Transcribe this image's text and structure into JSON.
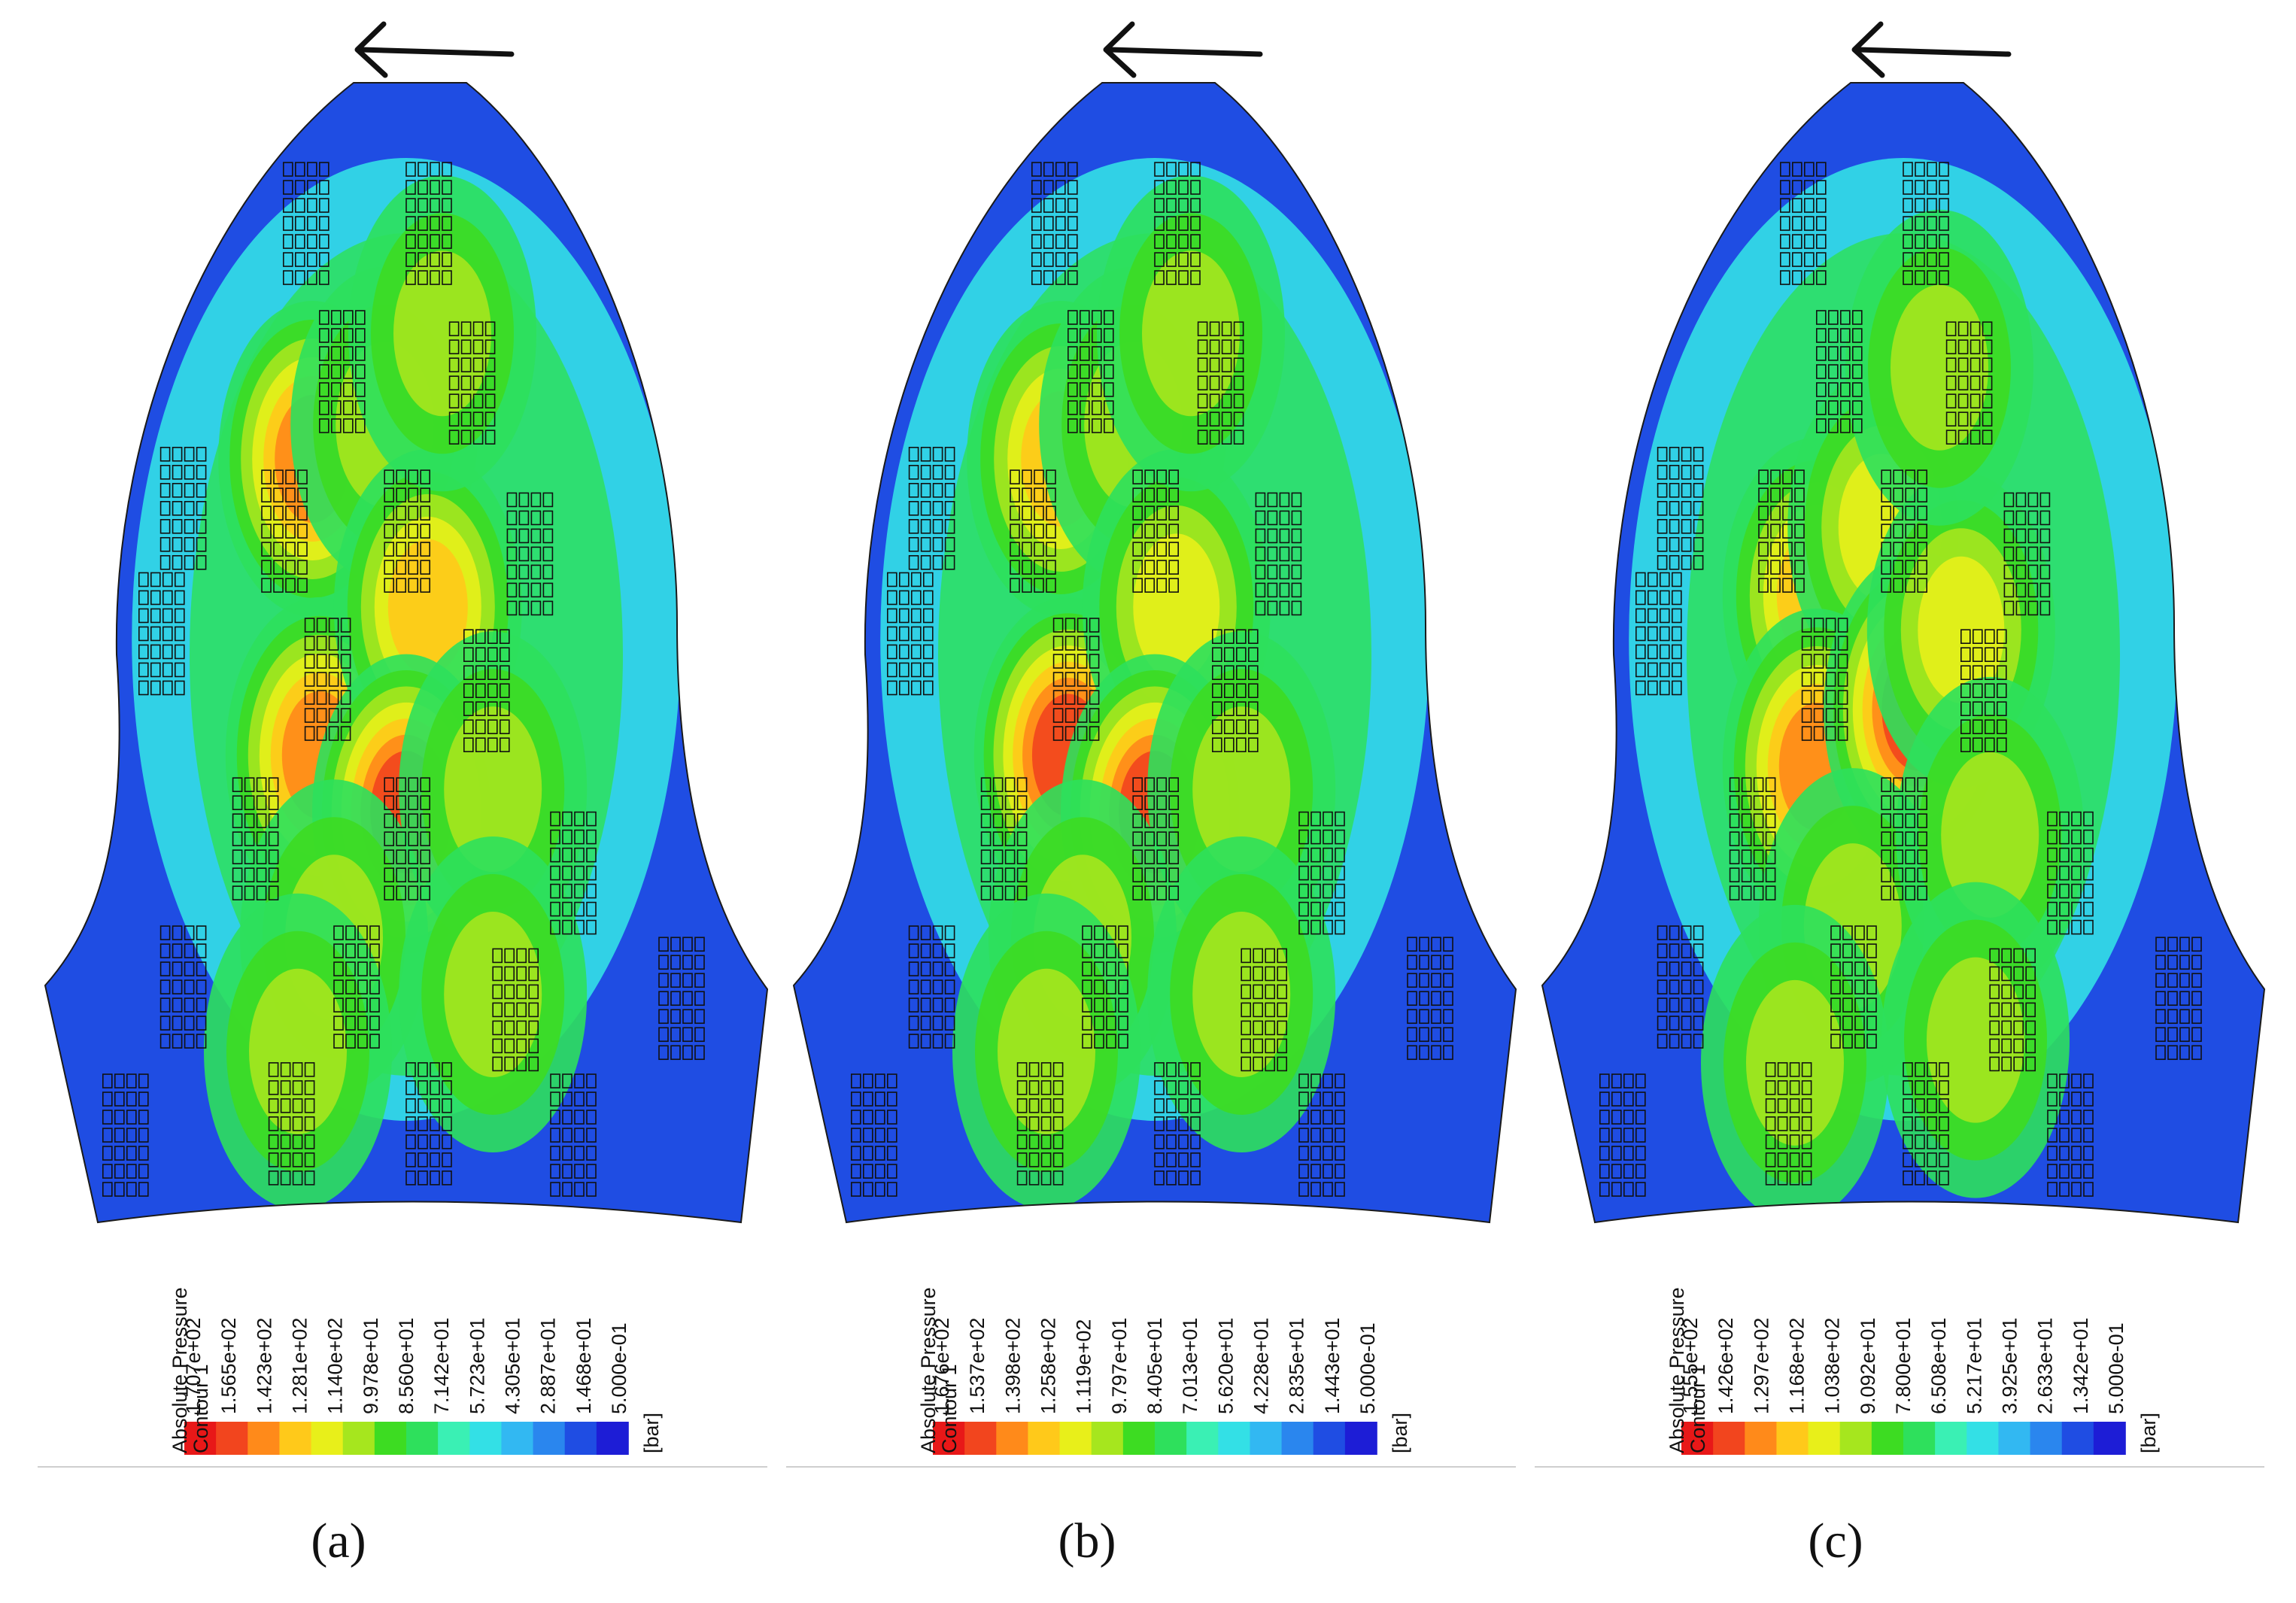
{
  "chart_data": [
    {
      "type": "heatmap",
      "caption": "(a)",
      "colorbar": {
        "title": "Absolute Pressure",
        "subtitle": "Contour 1",
        "unit": "[bar]",
        "tick_labels": [
          "1.707e+02",
          "1.565e+02",
          "1.423e+02",
          "1.281e+02",
          "1.140e+02",
          "9.978e+01",
          "8.560e+01",
          "7.142e+01",
          "5.723e+01",
          "4.305e+01",
          "2.887e+01",
          "1.468e+01",
          "5.000e-01"
        ],
        "max": 170.7,
        "min": 0.5
      },
      "rotation_arrow": "left",
      "hotspots": [
        {
          "x": 0.37,
          "y": 0.33,
          "v": 0.78
        },
        {
          "x": 0.47,
          "y": 0.3,
          "v": 0.55
        },
        {
          "x": 0.38,
          "y": 0.59,
          "v": 0.78
        },
        {
          "x": 0.53,
          "y": 0.46,
          "v": 0.72
        },
        {
          "x": 0.5,
          "y": 0.64,
          "v": 0.88
        },
        {
          "x": 0.4,
          "y": 0.75,
          "v": 0.55
        },
        {
          "x": 0.62,
          "y": 0.62,
          "v": 0.45
        },
        {
          "x": 0.35,
          "y": 0.85,
          "v": 0.4
        },
        {
          "x": 0.62,
          "y": 0.8,
          "v": 0.4
        },
        {
          "x": 0.55,
          "y": 0.22,
          "v": 0.35
        }
      ]
    },
    {
      "type": "heatmap",
      "caption": "(b)",
      "colorbar": {
        "title": "Absolute Pressure",
        "subtitle": "Contour 1",
        "unit": "[bar]",
        "tick_labels": [
          "1.676e+02",
          "1.537e+02",
          "1.398e+02",
          "1.258e+02",
          "1.119e+02",
          "9.797e+01",
          "8.405e+01",
          "7.013e+01",
          "5.620e+01",
          "4.228e+01",
          "2.835e+01",
          "1.443e+01",
          "5.000e-01"
        ],
        "max": 167.6,
        "min": 0.5
      },
      "rotation_arrow": "left",
      "hotspots": [
        {
          "x": 0.37,
          "y": 0.33,
          "v": 0.72
        },
        {
          "x": 0.47,
          "y": 0.3,
          "v": 0.5
        },
        {
          "x": 0.38,
          "y": 0.59,
          "v": 0.82
        },
        {
          "x": 0.53,
          "y": 0.46,
          "v": 0.65
        },
        {
          "x": 0.5,
          "y": 0.64,
          "v": 0.86
        },
        {
          "x": 0.4,
          "y": 0.75,
          "v": 0.55
        },
        {
          "x": 0.62,
          "y": 0.62,
          "v": 0.42
        },
        {
          "x": 0.35,
          "y": 0.85,
          "v": 0.4
        },
        {
          "x": 0.62,
          "y": 0.8,
          "v": 0.4
        },
        {
          "x": 0.55,
          "y": 0.22,
          "v": 0.35
        }
      ]
    },
    {
      "type": "heatmap",
      "caption": "(c)",
      "colorbar": {
        "title": "Absolute Pressure",
        "subtitle": "Contour 1",
        "unit": "[bar]",
        "tick_labels": [
          "1.555e+02",
          "1.426e+02",
          "1.297e+02",
          "1.168e+02",
          "1.038e+02",
          "9.092e+01",
          "7.800e+01",
          "6.508e+01",
          "5.217e+01",
          "3.925e+01",
          "2.633e+01",
          "1.342e+01",
          "5.000e-01"
        ],
        "max": 155.5,
        "min": 0.5
      },
      "rotation_arrow": "left",
      "hotspots": [
        {
          "x": 0.38,
          "y": 0.45,
          "v": 0.7
        },
        {
          "x": 0.47,
          "y": 0.39,
          "v": 0.62
        },
        {
          "x": 0.38,
          "y": 0.6,
          "v": 0.75
        },
        {
          "x": 0.52,
          "y": 0.55,
          "v": 0.85
        },
        {
          "x": 0.58,
          "y": 0.48,
          "v": 0.6
        },
        {
          "x": 0.43,
          "y": 0.74,
          "v": 0.55
        },
        {
          "x": 0.62,
          "y": 0.66,
          "v": 0.4
        },
        {
          "x": 0.35,
          "y": 0.86,
          "v": 0.4
        },
        {
          "x": 0.6,
          "y": 0.84,
          "v": 0.4
        },
        {
          "x": 0.55,
          "y": 0.25,
          "v": 0.35
        }
      ]
    }
  ],
  "colormap": [
    "#1d1dd6",
    "#1f4de3",
    "#2a86ee",
    "#32b8f2",
    "#33e0e6",
    "#3af0b4",
    "#2ee05c",
    "#3ddc22",
    "#a6e61e",
    "#e8ef1a",
    "#ffc91a",
    "#ff8a1a",
    "#f2451e",
    "#e81818"
  ]
}
